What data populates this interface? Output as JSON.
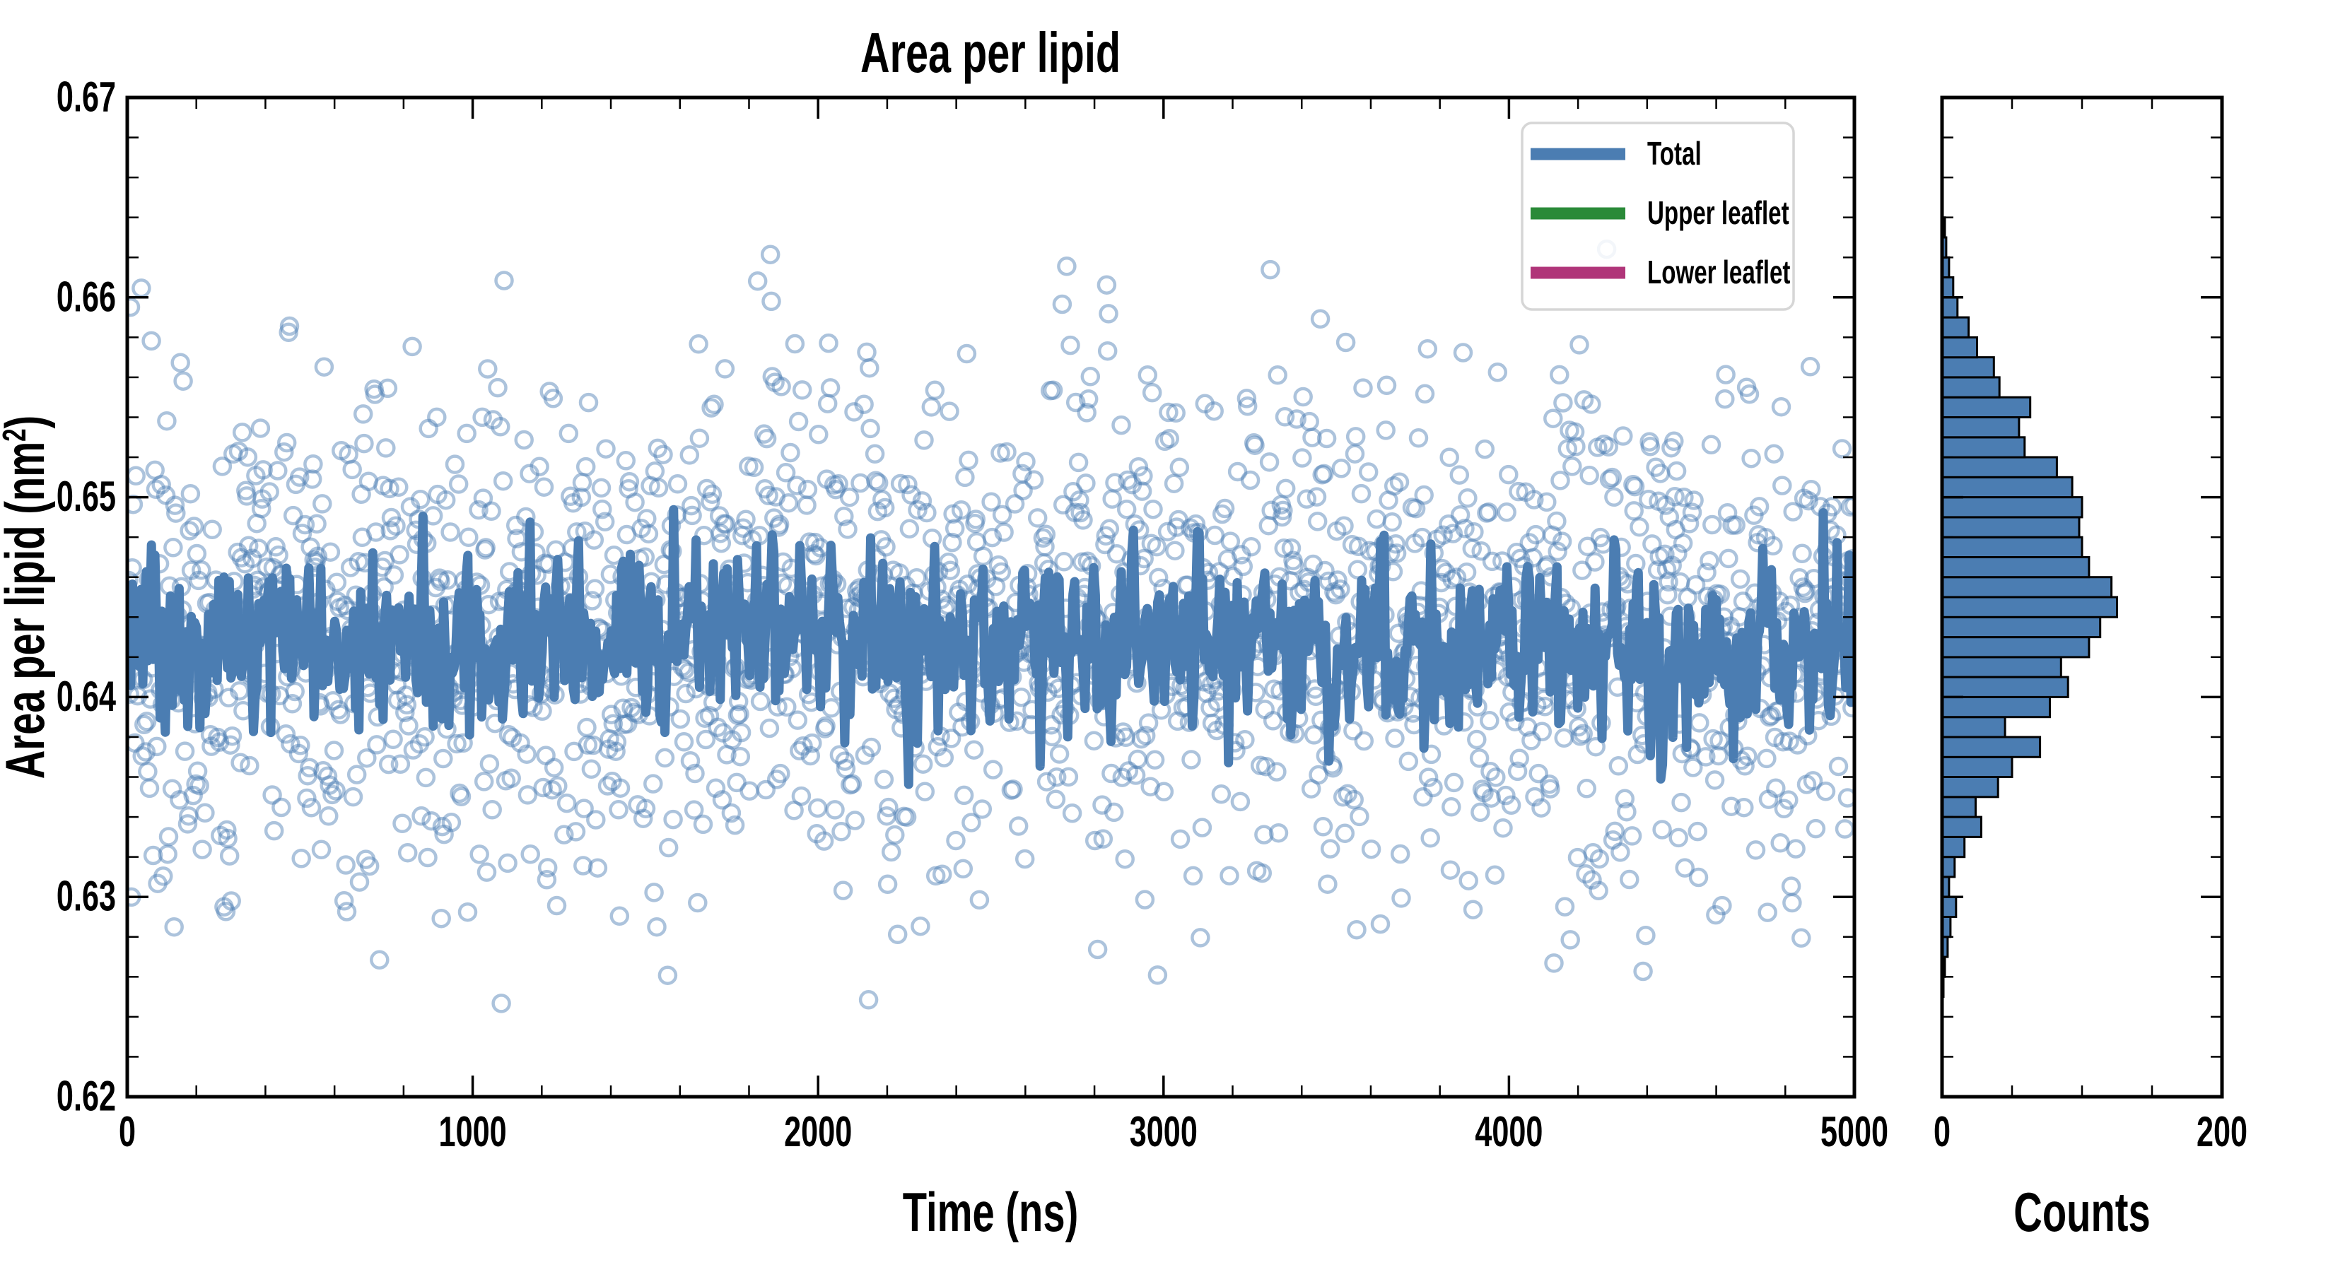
{
  "figure": {
    "background": "#ffffff",
    "text_color": "#000000"
  },
  "legend": {
    "border_color": "#d6d6d6",
    "background": "rgba(255,255,255,0.85)",
    "items": [
      {
        "label": "Total",
        "color": "#4b7db2"
      },
      {
        "label": "Upper leaflet",
        "color": "#2a8a38"
      },
      {
        "label": "Lower leaflet",
        "color": "#b03579"
      }
    ]
  },
  "chart_data": [
    {
      "type": "scatter",
      "panel": "main",
      "title": "Area per lipid",
      "xlabel": "Time (ns)",
      "ylabel": "Area per lipid (nm²)",
      "ylabel_parts": {
        "base": "Area per lipid (nm",
        "sup": "2",
        "close": ")"
      },
      "xlim": [
        0,
        5000
      ],
      "ylim": [
        0.62,
        0.67
      ],
      "x_major_ticks": [
        0,
        1000,
        2000,
        3000,
        4000,
        5000
      ],
      "x_tick_labels": [
        "0",
        "1000",
        "2000",
        "3000",
        "4000",
        "5000"
      ],
      "x_minor_step": 200,
      "y_major_ticks": [
        0.62,
        0.63,
        0.64,
        0.65,
        0.66,
        0.67
      ],
      "y_tick_labels": [
        "0.62",
        "0.63",
        "0.64",
        "0.65",
        "0.66",
        "0.67"
      ],
      "y_minor_step": 0.002,
      "grid": false,
      "legend_position": "upper right",
      "series": [
        {
          "name": "Total",
          "style": "thick-line",
          "color": "#4b7db2",
          "approx_mean": 0.6428,
          "approx_std": 0.0021,
          "approx_range": [
            0.636,
            0.65
          ],
          "n_rendered_points": 1000
        },
        {
          "name": "Total per-frame samples",
          "style": "open-circle-markers",
          "color": "rgba(70,123,178,0.45)",
          "marker_radius_px": 11.5,
          "approx_mean": 0.6432,
          "approx_std": 0.0063,
          "approx_range": [
            0.6255,
            0.6645
          ],
          "n_rendered_points": 1900
        },
        {
          "name": "Upper leaflet",
          "style": "line",
          "color": "#2a8a38",
          "note": "appears in legend only; curve not visible in plot"
        },
        {
          "name": "Lower leaflet",
          "style": "line",
          "color": "#b03579",
          "note": "appears in legend only; curve not visible in plot"
        }
      ]
    },
    {
      "type": "bar",
      "panel": "right",
      "orientation": "horizontal",
      "xlabel": "Counts",
      "xlim": [
        0,
        200
      ],
      "x_major_ticks": [
        0,
        200
      ],
      "x_tick_labels": [
        "0",
        "200"
      ],
      "x_minor_ticks": [
        50,
        100,
        150
      ],
      "ylim": [
        0.62,
        0.67
      ],
      "bar_color": "#4b7db2",
      "bar_edge_color": "#000000",
      "bin_start": 0.625,
      "bin_width": 0.001,
      "counts": [
        1,
        2,
        4,
        6,
        10,
        5,
        9,
        16,
        28,
        24,
        40,
        50,
        70,
        45,
        77,
        90,
        85,
        105,
        113,
        125,
        121,
        105,
        100,
        98,
        100,
        93,
        82,
        59,
        55,
        63,
        41,
        37,
        25,
        19,
        11,
        8,
        5,
        3,
        2
      ]
    }
  ]
}
